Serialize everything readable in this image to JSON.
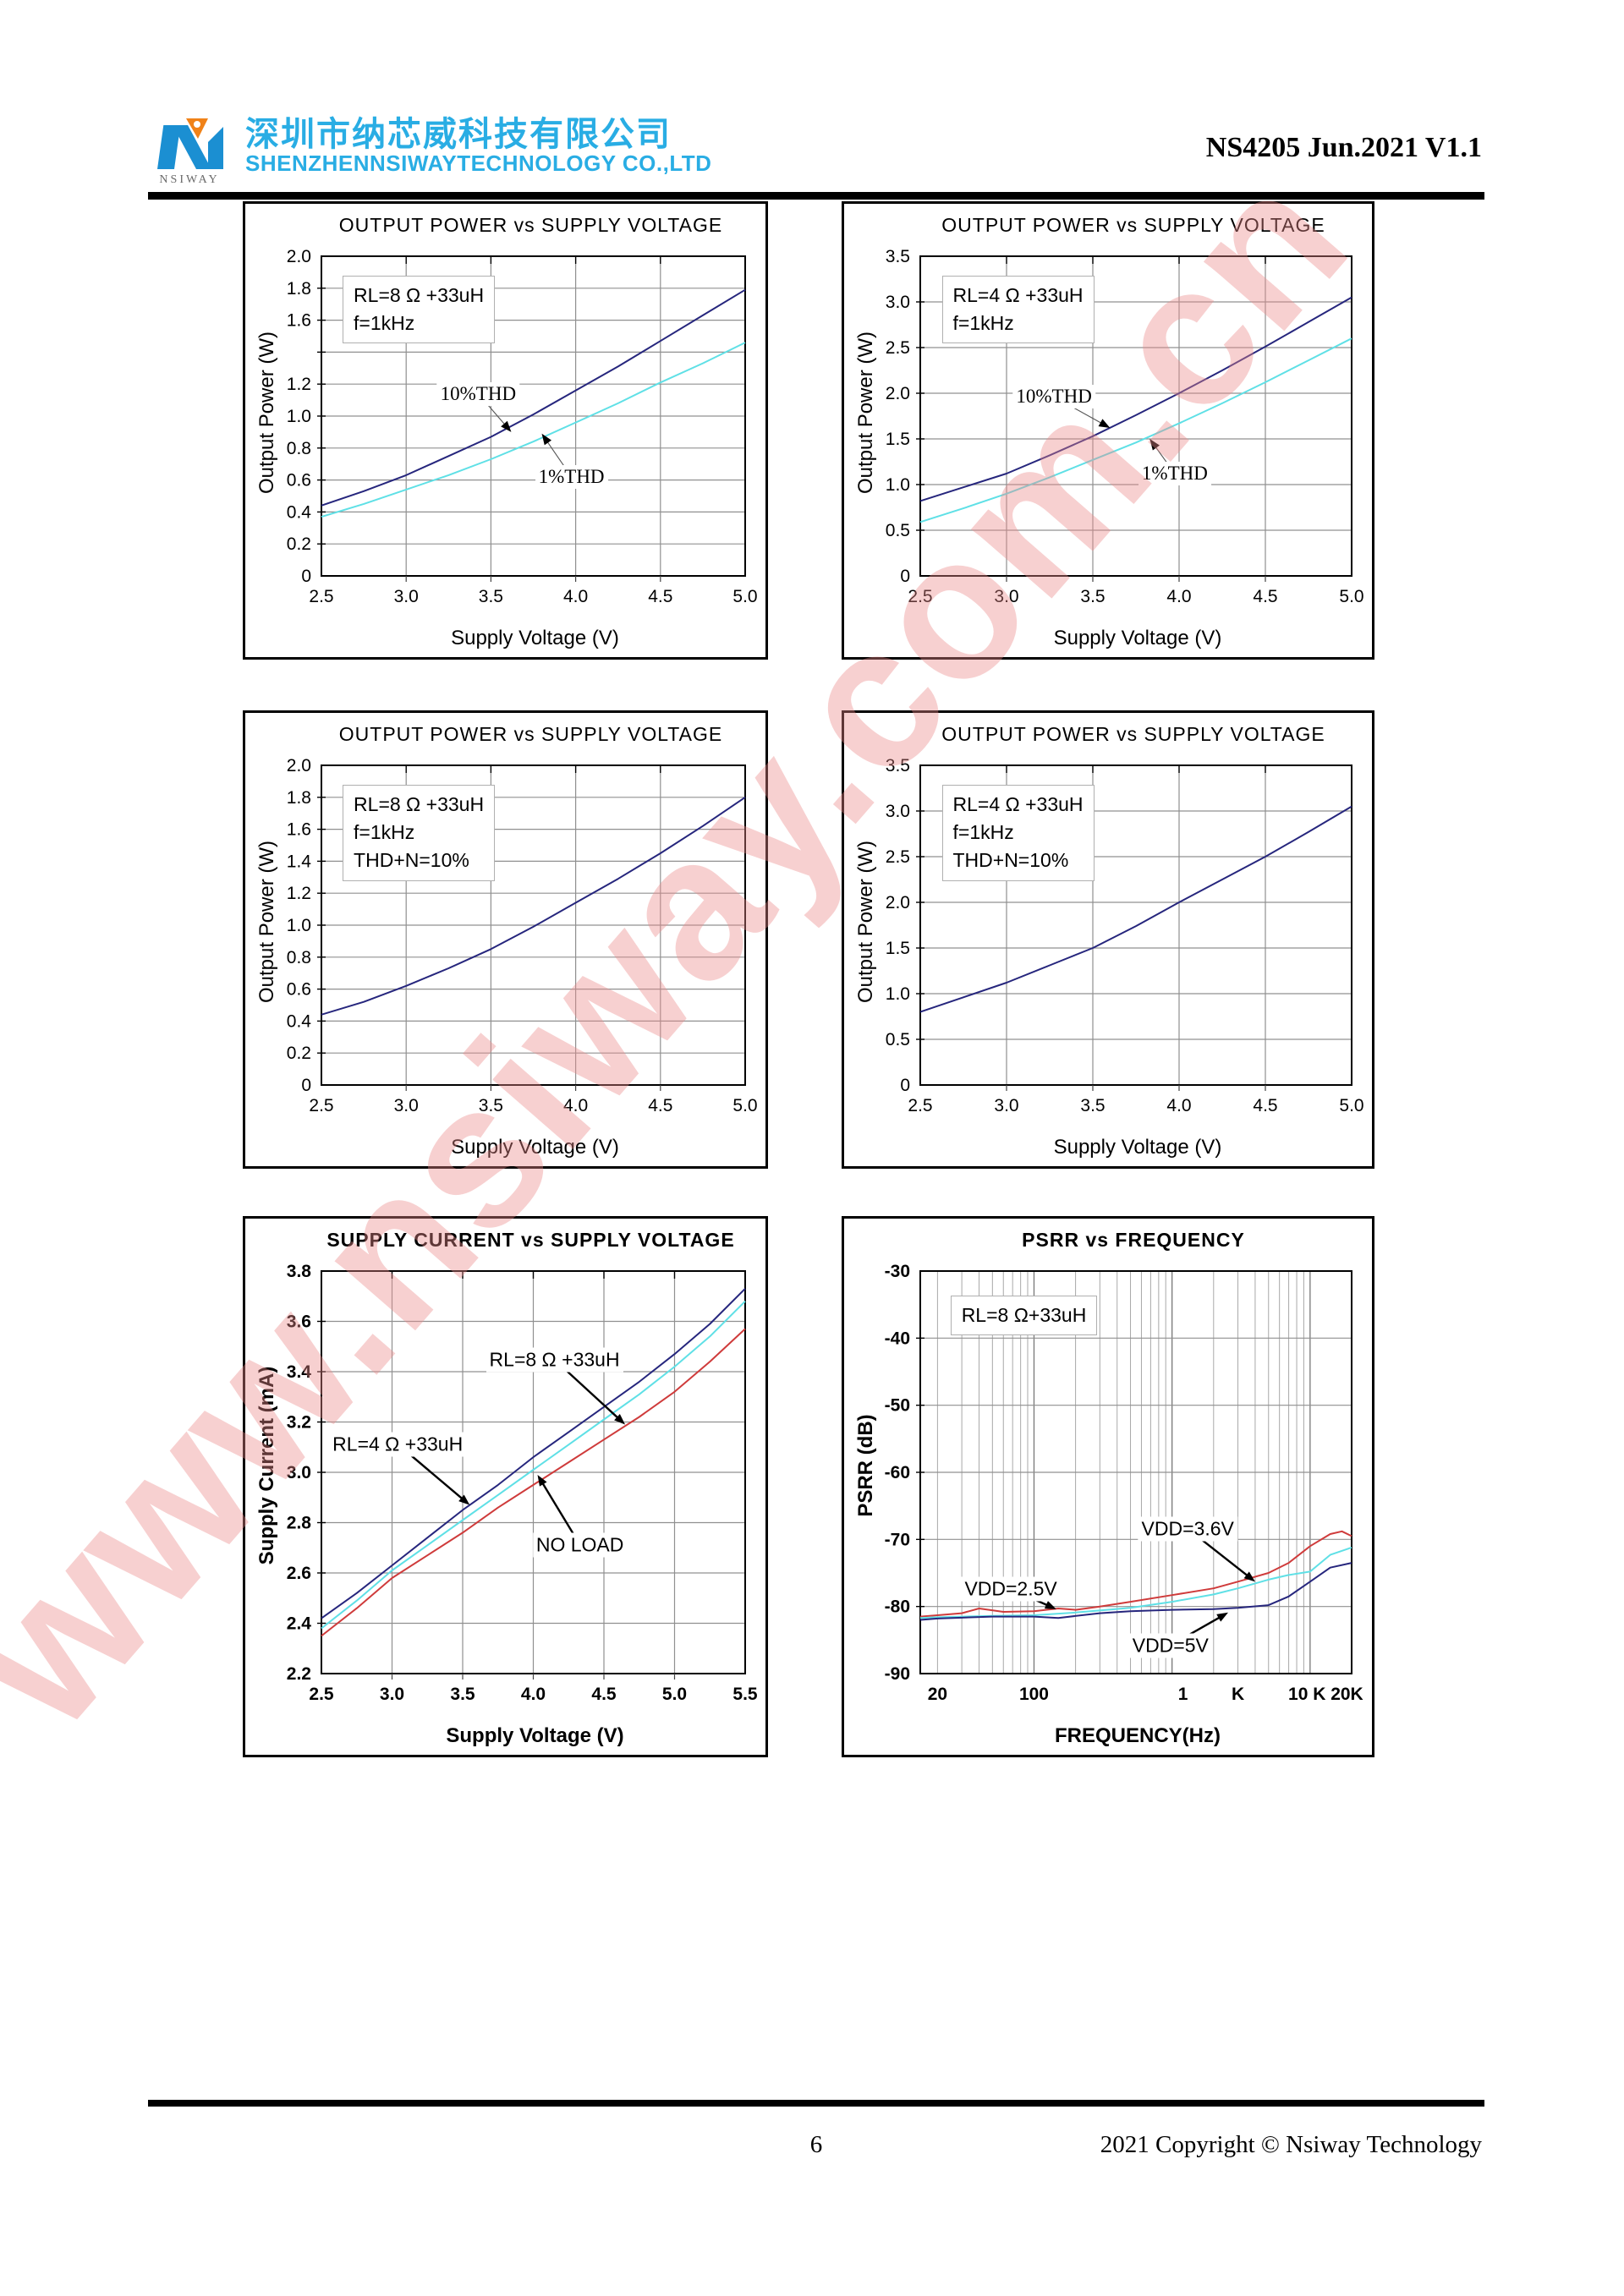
{
  "page": {
    "header": {
      "logo_text": "NSIWAY",
      "company_cn": "深圳市纳芯威科技有限公司",
      "company_en": "SHENZHENNSIWAYTECHNOLOGY CO.,LTD",
      "doc_ref": "NS4205 Jun.2021 V1.1"
    },
    "footer": {
      "page_number": "6",
      "copyright": "2021 Copyright © Nsiway Technology"
    },
    "watermark": "www.nsiway.com.cn",
    "colors": {
      "brand_cyan": "#29ade4",
      "logo_blue": "#1b8fd2",
      "logo_orange": "#f08218",
      "series_navy": "#26267d",
      "series_cyan": "#5fe0e6",
      "series_red": "#cf3b3b",
      "grid_grey": "#909090",
      "watermark_pink": "#ec8a8a"
    }
  },
  "chart_data": [
    {
      "type": "line",
      "title": "OUTPUT POWER vs SUPPLY VOLTAGE",
      "xlabel": "Supply Voltage (V)",
      "ylabel": "Output Power (W)",
      "xscale": "linear",
      "xlim": [
        2.5,
        5.0
      ],
      "ylim": [
        0,
        2.0
      ],
      "xgrid": [
        3.0,
        3.5,
        4.0,
        4.5
      ],
      "ygrid": [
        0.2,
        0.4,
        0.6,
        0.8,
        1.0,
        1.2,
        1.4,
        1.6,
        1.8
      ],
      "xticks": [
        {
          "v": 2.5,
          "l": "2.5"
        },
        {
          "v": 3.0,
          "l": "3.0"
        },
        {
          "v": 3.5,
          "l": "3.5"
        },
        {
          "v": 4.0,
          "l": "4.0"
        },
        {
          "v": 4.5,
          "l": "4.5"
        },
        {
          "v": 5.0,
          "l": "5.0"
        }
      ],
      "yticks": [
        {
          "v": 2.0,
          "l": "2.0"
        },
        {
          "v": 1.8,
          "l": "1.8"
        },
        {
          "v": 1.6,
          "l": "1.6"
        },
        {
          "v": 1.2,
          "l": "1.2"
        },
        {
          "v": 1.0,
          "l": "1.0"
        },
        {
          "v": 0.8,
          "l": "0.8"
        },
        {
          "v": 0.6,
          "l": "0.6"
        },
        {
          "v": 0.4,
          "l": "0.4"
        },
        {
          "v": 0.2,
          "l": "0.2"
        },
        {
          "v": 0,
          "l": "0"
        }
      ],
      "cond": {
        "lines": [
          "RL=8 Ω +33uH",
          "f=1kHz"
        ],
        "fx": 0.05,
        "fy": 0.06
      },
      "series": [
        {
          "name": "10%THD",
          "color": "#26267d",
          "x": [
            2.5,
            2.75,
            3.0,
            3.25,
            3.5,
            3.75,
            4.0,
            4.25,
            4.5,
            4.75,
            5.0
          ],
          "y": [
            0.44,
            0.53,
            0.63,
            0.75,
            0.87,
            1.01,
            1.16,
            1.31,
            1.47,
            1.63,
            1.79
          ]
        },
        {
          "name": "1%THD",
          "color": "#5fe0e6",
          "x": [
            2.5,
            2.75,
            3.0,
            3.25,
            3.5,
            3.75,
            4.0,
            4.25,
            4.5,
            4.75,
            5.0
          ],
          "y": [
            0.37,
            0.45,
            0.54,
            0.63,
            0.73,
            0.84,
            0.96,
            1.08,
            1.21,
            1.33,
            1.46
          ]
        }
      ],
      "annotations": [
        {
          "text": "10%THD",
          "serif": true,
          "fx": 0.37,
          "fy": 0.43,
          "tip": [
            3.62,
            0.9
          ]
        },
        {
          "text": "1%THD",
          "serif": true,
          "fx": 0.59,
          "fy": 0.69,
          "tip": [
            3.8,
            0.89
          ]
        }
      ]
    },
    {
      "type": "line",
      "title": "OUTPUT POWER vs SUPPLY VOLTAGE",
      "xlabel": "Supply Voltage (V)",
      "ylabel": "Output Power (W)",
      "xscale": "linear",
      "xlim": [
        2.5,
        5.0
      ],
      "ylim": [
        0,
        3.5
      ],
      "xgrid": [
        3.0,
        3.5,
        4.0,
        4.5
      ],
      "ygrid": [
        0.5,
        1.0,
        1.5,
        2.0,
        2.5,
        3.0
      ],
      "xticks": [
        {
          "v": 2.5,
          "l": "2.5"
        },
        {
          "v": 3.0,
          "l": "3.0"
        },
        {
          "v": 3.5,
          "l": "3.5"
        },
        {
          "v": 4.0,
          "l": "4.0"
        },
        {
          "v": 4.5,
          "l": "4.5"
        },
        {
          "v": 5.0,
          "l": "5.0"
        }
      ],
      "yticks": [
        {
          "v": 3.5,
          "l": "3.5"
        },
        {
          "v": 3.0,
          "l": "3.0"
        },
        {
          "v": 2.5,
          "l": "2.5"
        },
        {
          "v": 2.0,
          "l": "2.0"
        },
        {
          "v": 1.5,
          "l": "1.5"
        },
        {
          "v": 1.0,
          "l": "1.0"
        },
        {
          "v": 0.5,
          "l": "0.5"
        },
        {
          "v": 0,
          "l": "0"
        }
      ],
      "cond": {
        "lines": [
          "RL=4 Ω +33uH",
          "f=1kHz"
        ],
        "fx": 0.05,
        "fy": 0.06
      },
      "series": [
        {
          "name": "10%THD",
          "color": "#26267d",
          "x": [
            2.5,
            2.75,
            3.0,
            3.25,
            3.5,
            3.75,
            4.0,
            4.25,
            4.5,
            4.75,
            5.0
          ],
          "y": [
            0.82,
            0.97,
            1.12,
            1.32,
            1.53,
            1.76,
            2.0,
            2.25,
            2.51,
            2.78,
            3.05
          ]
        },
        {
          "name": "1%THD",
          "color": "#5fe0e6",
          "x": [
            2.5,
            2.75,
            3.0,
            3.25,
            3.5,
            3.75,
            4.0,
            4.25,
            4.5,
            4.75,
            5.0
          ],
          "y": [
            0.59,
            0.74,
            0.9,
            1.08,
            1.27,
            1.46,
            1.67,
            1.89,
            2.12,
            2.36,
            2.6
          ]
        }
      ],
      "annotations": [
        {
          "text": "10%THD",
          "serif": true,
          "fx": 0.31,
          "fy": 0.44,
          "tip": [
            3.6,
            1.62
          ]
        },
        {
          "text": "1%THD",
          "serif": true,
          "fx": 0.59,
          "fy": 0.68,
          "tip": [
            3.83,
            1.5
          ]
        }
      ]
    },
    {
      "type": "line",
      "title": "OUTPUT POWER vs SUPPLY VOLTAGE",
      "xlabel": "Supply Voltage (V)",
      "ylabel": "Output Power (W)",
      "xscale": "linear",
      "xlim": [
        2.5,
        5.0
      ],
      "ylim": [
        0,
        2.0
      ],
      "xgrid": [
        3.0,
        3.5,
        4.0,
        4.5
      ],
      "ygrid": [
        0.2,
        0.4,
        0.6,
        0.8,
        1.0,
        1.2,
        1.4,
        1.6,
        1.8
      ],
      "xticks": [
        {
          "v": 2.5,
          "l": "2.5"
        },
        {
          "v": 3.0,
          "l": "3.0"
        },
        {
          "v": 3.5,
          "l": "3.5"
        },
        {
          "v": 4.0,
          "l": "4.0"
        },
        {
          "v": 4.5,
          "l": "4.5"
        },
        {
          "v": 5.0,
          "l": "5.0"
        }
      ],
      "yticks": [
        {
          "v": 2.0,
          "l": "2.0"
        },
        {
          "v": 1.8,
          "l": "1.8"
        },
        {
          "v": 1.6,
          "l": "1.6"
        },
        {
          "v": 1.4,
          "l": "1.4"
        },
        {
          "v": 1.2,
          "l": "1.2"
        },
        {
          "v": 1.0,
          "l": "1.0"
        },
        {
          "v": 0.8,
          "l": "0.8"
        },
        {
          "v": 0.6,
          "l": "0.6"
        },
        {
          "v": 0.4,
          "l": "0.4"
        },
        {
          "v": 0.2,
          "l": "0.2"
        },
        {
          "v": 0,
          "l": "0"
        }
      ],
      "cond": {
        "lines": [
          "RL=8 Ω +33uH",
          "f=1kHz",
          "THD+N=10%"
        ],
        "fx": 0.05,
        "fy": 0.06
      },
      "series": [
        {
          "name": "THD+N=10%",
          "color": "#26267d",
          "x": [
            2.5,
            2.75,
            3.0,
            3.25,
            3.5,
            3.75,
            4.0,
            4.25,
            4.5,
            4.75,
            5.0
          ],
          "y": [
            0.44,
            0.52,
            0.62,
            0.73,
            0.85,
            0.99,
            1.14,
            1.29,
            1.45,
            1.62,
            1.8
          ]
        }
      ],
      "annotations": []
    },
    {
      "type": "line",
      "title": "OUTPUT POWER vs SUPPLY VOLTAGE",
      "xlabel": "Supply Voltage (V)",
      "ylabel": "Output Power (W)",
      "xscale": "linear",
      "xlim": [
        2.5,
        5.0
      ],
      "ylim": [
        0,
        3.5
      ],
      "xgrid": [
        3.0,
        3.5,
        4.0,
        4.5
      ],
      "ygrid": [
        0.5,
        1.0,
        1.5,
        2.0,
        2.5,
        3.0
      ],
      "xticks": [
        {
          "v": 2.5,
          "l": "2.5"
        },
        {
          "v": 3.0,
          "l": "3.0"
        },
        {
          "v": 3.5,
          "l": "3.5"
        },
        {
          "v": 4.0,
          "l": "4.0"
        },
        {
          "v": 4.5,
          "l": "4.5"
        },
        {
          "v": 5.0,
          "l": "5.0"
        }
      ],
      "yticks": [
        {
          "v": 3.5,
          "l": "3.5"
        },
        {
          "v": 3.0,
          "l": "3.0"
        },
        {
          "v": 2.5,
          "l": "2.5"
        },
        {
          "v": 2.0,
          "l": "2.0"
        },
        {
          "v": 1.5,
          "l": "1.5"
        },
        {
          "v": 1.0,
          "l": "1.0"
        },
        {
          "v": 0.5,
          "l": "0.5"
        },
        {
          "v": 0,
          "l": "0"
        }
      ],
      "cond": {
        "lines": [
          "RL=4 Ω +33uH",
          "f=1kHz",
          "THD+N=10%"
        ],
        "fx": 0.05,
        "fy": 0.06
      },
      "series": [
        {
          "name": "THD+N=10%",
          "color": "#26267d",
          "x": [
            2.5,
            2.75,
            3.0,
            3.25,
            3.5,
            3.75,
            4.0,
            4.25,
            4.5,
            4.75,
            5.0
          ],
          "y": [
            0.8,
            0.96,
            1.12,
            1.31,
            1.5,
            1.74,
            2.0,
            2.25,
            2.5,
            2.77,
            3.05
          ]
        }
      ],
      "annotations": []
    },
    {
      "type": "line",
      "title": "SUPPLY CURRENT vs SUPPLY VOLTAGE",
      "xlabel": "Supply Voltage (V)",
      "ylabel": "Supply Current (mA)",
      "xscale": "linear",
      "bold_axis": true,
      "xlim": [
        2.5,
        5.5
      ],
      "ylim": [
        2.2,
        3.8
      ],
      "xgrid": [
        3.0,
        3.5,
        4.0,
        4.5,
        5.0
      ],
      "ygrid": [
        2.4,
        2.6,
        2.8,
        3.0,
        3.2,
        3.4,
        3.6
      ],
      "xticks": [
        {
          "v": 2.5,
          "l": "2.5"
        },
        {
          "v": 3.0,
          "l": "3.0"
        },
        {
          "v": 3.5,
          "l": "3.5"
        },
        {
          "v": 4.0,
          "l": "4.0"
        },
        {
          "v": 4.5,
          "l": "4.5"
        },
        {
          "v": 5.0,
          "l": "5.0"
        },
        {
          "v": 5.5,
          "l": "5.5"
        }
      ],
      "yticks": [
        {
          "v": 3.8,
          "l": "3.8"
        },
        {
          "v": 3.6,
          "l": "3.6"
        },
        {
          "v": 3.4,
          "l": "3.4"
        },
        {
          "v": 3.2,
          "l": "3.2"
        },
        {
          "v": 3.0,
          "l": "3.0"
        },
        {
          "v": 2.8,
          "l": "2.8"
        },
        {
          "v": 2.6,
          "l": "2.6"
        },
        {
          "v": 2.4,
          "l": "2.4"
        },
        {
          "v": 2.2,
          "l": "2.2"
        }
      ],
      "series": [
        {
          "name": "RL=4 Ω +33uH",
          "color": "#26267d",
          "x": [
            2.5,
            2.75,
            3.0,
            3.25,
            3.5,
            3.75,
            4.0,
            4.25,
            4.5,
            4.75,
            5.0,
            5.25,
            5.5
          ],
          "y": [
            2.42,
            2.52,
            2.63,
            2.74,
            2.85,
            2.95,
            3.06,
            3.16,
            3.26,
            3.36,
            3.47,
            3.59,
            3.73
          ]
        },
        {
          "name": "RL=8 Ω +33uH",
          "color": "#5fe0e6",
          "x": [
            2.5,
            2.75,
            3.0,
            3.25,
            3.5,
            3.75,
            4.0,
            4.25,
            4.5,
            4.75,
            5.0,
            5.25,
            5.5
          ],
          "y": [
            2.38,
            2.49,
            2.61,
            2.71,
            2.81,
            2.91,
            3.01,
            3.11,
            3.21,
            3.31,
            3.42,
            3.54,
            3.68
          ]
        },
        {
          "name": "NO LOAD",
          "color": "#cf3b3b",
          "x": [
            2.5,
            2.75,
            3.0,
            3.25,
            3.5,
            3.75,
            4.0,
            4.25,
            4.5,
            4.75,
            5.0,
            5.25,
            5.5
          ],
          "y": [
            2.35,
            2.46,
            2.58,
            2.67,
            2.76,
            2.86,
            2.95,
            3.04,
            3.13,
            3.22,
            3.32,
            3.44,
            3.57
          ]
        }
      ],
      "annotations": [
        {
          "text": "RL=8 Ω +33uH",
          "fx": 0.55,
          "fy": 0.22,
          "tip": [
            4.65,
            3.19
          ],
          "lw": 2.4
        },
        {
          "text": "RL=4 Ω +33uH",
          "fx": 0.18,
          "fy": 0.43,
          "tip": [
            3.55,
            2.87
          ],
          "lw": 2.4
        },
        {
          "text": "NO LOAD",
          "fx": 0.61,
          "fy": 0.68,
          "tip": [
            4.03,
            2.99
          ],
          "lw": 2.4
        }
      ]
    },
    {
      "type": "line",
      "title": "PSRR vs FREQUENCY",
      "xlabel": "FREQUENCY(Hz)",
      "ylabel": "PSRR (dB)",
      "xscale": "log",
      "bold_axis": true,
      "xlim": [
        15,
        20000
      ],
      "ylim": [
        -90,
        -30
      ],
      "xgrid": [],
      "ygrid": [
        -40,
        -50,
        -60,
        -70,
        -80
      ],
      "xticks": [
        {
          "v": 20,
          "l": "20"
        },
        {
          "v": 100,
          "l": "100"
        },
        {
          "v": 1200,
          "l": "1"
        },
        {
          "v": 3000,
          "l": "K"
        },
        {
          "v": 9500,
          "l": "10 K"
        },
        {
          "v": 18500,
          "l": "20K"
        }
      ],
      "yticks": [
        {
          "v": -30,
          "l": "-30"
        },
        {
          "v": -40,
          "l": "-40"
        },
        {
          "v": -50,
          "l": "-50"
        },
        {
          "v": -60,
          "l": "-60"
        },
        {
          "v": -70,
          "l": "-70"
        },
        {
          "v": -80,
          "l": "-80"
        },
        {
          "v": -90,
          "l": "-90"
        }
      ],
      "cond": {
        "lines": [
          "RL=8 Ω+33uH"
        ],
        "fx": 0.07,
        "fy": 0.06
      },
      "series": [
        {
          "name": "VDD=2.5V",
          "color": "#cf3b3b",
          "x": [
            15,
            20,
            30,
            40,
            60,
            100,
            150,
            200,
            300,
            500,
            1000,
            2000,
            3000,
            5000,
            7000,
            10000,
            14000,
            17000,
            20000
          ],
          "y": [
            -81.5,
            -81.3,
            -81.0,
            -80.3,
            -80.8,
            -80.7,
            -80.3,
            -80.5,
            -80.0,
            -79.3,
            -78.3,
            -77.3,
            -76.3,
            -75.0,
            -73.5,
            -71.0,
            -69.2,
            -68.8,
            -69.5
          ]
        },
        {
          "name": "VDD=3.6V",
          "color": "#5fe0e6",
          "x": [
            15,
            20,
            50,
            100,
            200,
            500,
            1000,
            2000,
            3000,
            5000,
            7000,
            10000,
            14000,
            20000
          ],
          "y": [
            -81.7,
            -81.6,
            -81.4,
            -81.3,
            -80.9,
            -80.2,
            -79.3,
            -78.2,
            -77.3,
            -76.0,
            -75.3,
            -74.8,
            -72.3,
            -71.2
          ]
        },
        {
          "name": "VDD=5V",
          "color": "#26267d",
          "x": [
            15,
            20,
            50,
            100,
            150,
            300,
            500,
            1000,
            2000,
            3000,
            5000,
            7000,
            10000,
            14000,
            20000
          ],
          "y": [
            -82.0,
            -81.8,
            -81.5,
            -81.5,
            -81.7,
            -81.0,
            -80.7,
            -80.5,
            -80.4,
            -80.2,
            -79.8,
            -78.5,
            -76.3,
            -74.2,
            -73.5
          ]
        }
      ],
      "annotations": [
        {
          "text": "VDD=3.6V",
          "fx": 0.62,
          "fy": 0.64,
          "tip": [
            4000,
            -76.3
          ],
          "lw": 2.4
        },
        {
          "text": "VDD=2.5V",
          "fx": 0.21,
          "fy": 0.79,
          "tip": [
            145,
            -80.4
          ],
          "lw": 2.4
        },
        {
          "text": "VDD=5V",
          "fx": 0.58,
          "fy": 0.93,
          "tip": [
            2550,
            -80.9
          ],
          "lw": 2.4
        }
      ]
    }
  ]
}
